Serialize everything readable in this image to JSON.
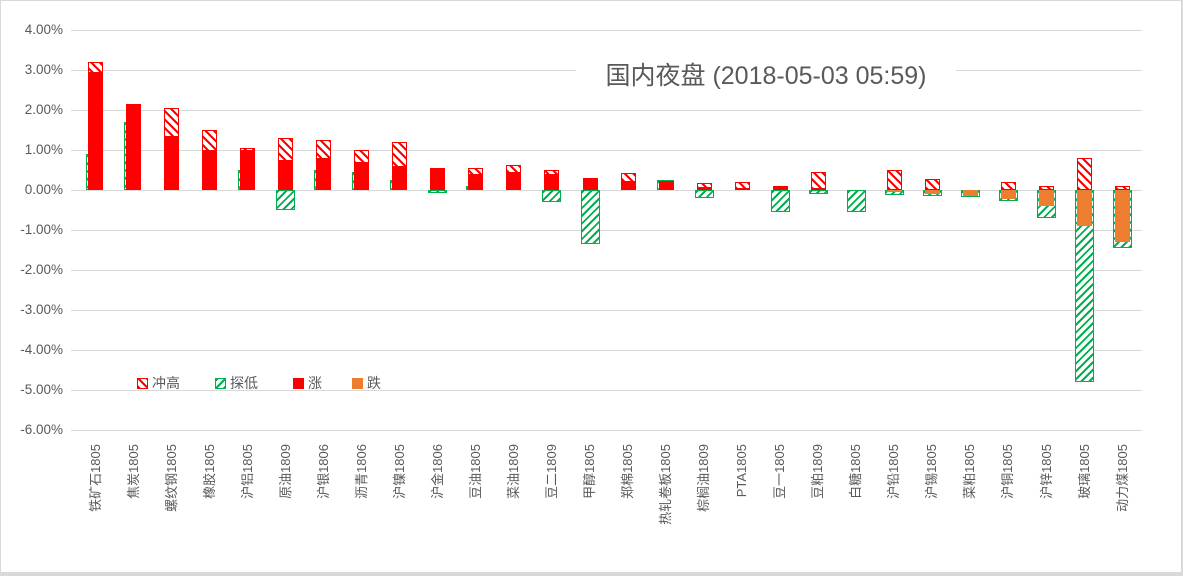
{
  "title": {
    "text": "国内夜盘 (2018-05-03 05:59)"
  },
  "y_axis": {
    "ticks": [
      "4.00%",
      "3.00%",
      "2.00%",
      "1.00%",
      "0.00%",
      "-1.00%",
      "-2.00%",
      "-3.00%",
      "-4.00%",
      "-5.00%",
      "-6.00%"
    ]
  },
  "colors": {
    "rise_red": "#ff0000",
    "fall_orange": "#ed7d31",
    "low_green": "#00b050",
    "grid": "#d9d9d9",
    "text": "#595959"
  },
  "chart_data": {
    "type": "bar",
    "title": "国内夜盘 (2018-05-03 05:59)",
    "xlabel": "",
    "ylabel": "",
    "ylim": [
      -6,
      4
    ],
    "ytick_step": 1,
    "ytick_format": "percent-2dp",
    "grid": true,
    "legend_position": "inside-bottom-left",
    "categories": [
      "铁矿石1805",
      "焦炭1805",
      "螺纹钢1805",
      "橡胶1805",
      "沪铝1805",
      "原油1809",
      "沪银1806",
      "沥青1806",
      "沪镍1805",
      "沪金1806",
      "豆油1805",
      "菜油1809",
      "豆二1809",
      "甲醇1805",
      "郑棉1805",
      "热轧卷板1805",
      "棕榈油1809",
      "PTA1805",
      "豆一1805",
      "豆粕1809",
      "白糖1805",
      "沪铅1805",
      "沪锡1805",
      "菜粕1805",
      "沪铜1805",
      "沪锌1805",
      "玻璃1805",
      "动力煤1805"
    ],
    "series": [
      {
        "name": "冲高",
        "style": "hatch-red",
        "values": [
          3.2,
          2.15,
          2.05,
          1.5,
          1.05,
          1.3,
          1.25,
          1.0,
          1.2,
          0.55,
          0.55,
          0.62,
          0.5,
          0.3,
          0.43,
          0.23,
          0.17,
          0.2,
          0.1,
          0.45,
          0,
          0.5,
          0.28,
          0,
          0.2,
          0.1,
          0.8,
          0.1
        ]
      },
      {
        "name": "探低",
        "style": "hatch-green",
        "values": [
          0.9,
          1.7,
          null,
          null,
          0.5,
          -0.5,
          0.5,
          0.45,
          0.25,
          -0.08,
          0.1,
          null,
          -0.3,
          -1.35,
          null,
          0.25,
          -0.2,
          null,
          -0.55,
          -0.1,
          -0.55,
          -0.12,
          -0.15,
          -0.18,
          -0.28,
          -0.7,
          -4.8,
          -1.45
        ]
      },
      {
        "name": "涨",
        "style": "solid-red",
        "values": [
          2.95,
          2.15,
          1.35,
          1.0,
          1.0,
          0.75,
          0.8,
          0.7,
          0.6,
          0.55,
          0.4,
          0.45,
          0.4,
          0.3,
          0.22,
          0.23,
          0.08,
          0.05,
          0.08,
          0.05,
          0,
          null,
          null,
          null,
          null,
          null,
          null,
          null
        ]
      },
      {
        "name": "跌",
        "style": "solid-orange",
        "values": [
          null,
          null,
          null,
          null,
          null,
          null,
          null,
          null,
          null,
          null,
          null,
          null,
          null,
          null,
          null,
          null,
          null,
          null,
          null,
          null,
          null,
          -0.05,
          -0.1,
          -0.15,
          -0.22,
          -0.4,
          -0.9,
          -1.3
        ]
      }
    ]
  }
}
